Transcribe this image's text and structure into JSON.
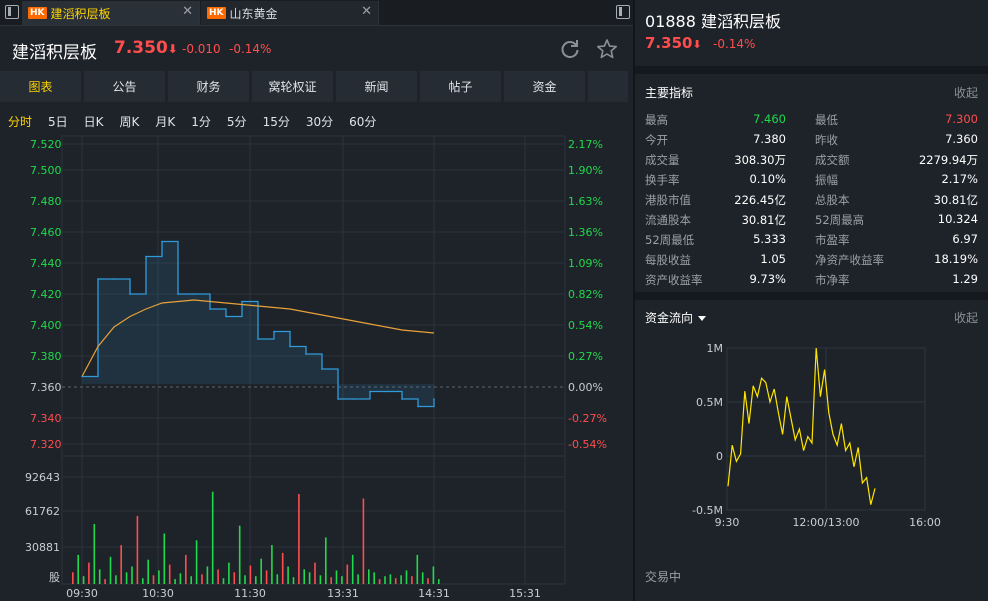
{
  "tabs": [
    {
      "badge": "HK",
      "label": "建滔积层板",
      "active": true
    },
    {
      "badge": "HK",
      "label": "山东黄金",
      "active": false
    }
  ],
  "stock": {
    "name": "建滔积层板",
    "price": "7.350",
    "price_arrow": "⬇",
    "change": "-0.010",
    "change_pct": "-0.14%"
  },
  "nav_tabs": [
    "图表",
    "公告",
    "财务",
    "窝轮权证",
    "新闻",
    "帖子",
    "资金"
  ],
  "periods": [
    "分时",
    "5日",
    "日K",
    "周K",
    "月K",
    "1分",
    "5分",
    "15分",
    "30分",
    "60分"
  ],
  "colors": {
    "up": "#21d94c",
    "down": "#ff4d4d",
    "accent": "#ffd400",
    "price_line": "#2e9cdc",
    "avg_line": "#e8a13a",
    "volume_up": "#21d94c",
    "volume_down": "#ff4d4d",
    "flow_line": "#ffe600"
  },
  "price_chart": {
    "y_labels": [
      "7.520",
      "7.500",
      "7.480",
      "7.460",
      "7.440",
      "7.420",
      "7.400",
      "7.380",
      "7.360",
      "7.340",
      "7.320"
    ],
    "pct_labels": [
      "2.17%",
      "1.90%",
      "1.63%",
      "1.36%",
      "1.09%",
      "0.82%",
      "0.54%",
      "0.27%",
      "0.00%",
      "-0.27%",
      "-0.54%"
    ],
    "prev_close": 7.36,
    "volume_labels": [
      "92643",
      "61762",
      "30881",
      "股"
    ],
    "time_labels": [
      "09:30",
      "10:30",
      "11:30",
      "13:31",
      "14:31",
      "15:31"
    ]
  },
  "chart_data": [
    {
      "type": "line",
      "title": "",
      "ylabel": "",
      "xlabel": "",
      "ylim": [
        7.32,
        7.52
      ],
      "x": [
        "09:30",
        "09:40",
        "09:50",
        "10:00",
        "10:10",
        "10:20",
        "10:30",
        "10:40",
        "10:50",
        "11:00",
        "11:10",
        "11:20",
        "11:30",
        "13:00",
        "13:10",
        "13:20",
        "13:30",
        "13:40",
        "13:50",
        "14:00",
        "14:10",
        "14:20",
        "14:30"
      ],
      "series": [
        {
          "values": [
            7.365,
            7.43,
            7.43,
            7.42,
            7.445,
            7.455,
            7.42,
            7.42,
            7.41,
            7.405,
            7.415,
            7.39,
            7.395,
            7.385,
            7.38,
            7.37,
            7.35,
            7.35,
            7.355,
            7.355,
            7.35,
            7.345,
            7.35
          ]
        },
        {
          "values": [
            7.365,
            7.385,
            7.398,
            7.405,
            7.41,
            7.414,
            7.415,
            7.416,
            7.415,
            7.414,
            7.413,
            7.412,
            7.411,
            7.41,
            7.408,
            7.406,
            7.404,
            7.402,
            7.4,
            7.398,
            7.396,
            7.395,
            7.394
          ]
        }
      ]
    },
    {
      "type": "bar",
      "title": "",
      "ylabel": "",
      "ylim": [
        0,
        123524
      ],
      "x_range": [
        "09:30",
        "14:31"
      ],
      "values": [
        12000,
        30000,
        8000,
        22000,
        61762,
        15000,
        5000,
        28000,
        9000,
        40000,
        12000,
        18000,
        70000,
        6000,
        25000,
        9000,
        14000,
        52000,
        20000,
        5000,
        11000,
        30000,
        8000,
        45000,
        10000,
        18000,
        95000,
        15000,
        6000,
        22000,
        12000,
        60000,
        9000,
        19000,
        8000,
        26000,
        14000,
        40000,
        10000,
        32000,
        18000,
        7000,
        92643,
        15000,
        12000,
        22000,
        9000,
        48000,
        7000,
        14000,
        8000,
        20000,
        30000,
        10000,
        88000,
        15000,
        12000,
        5000,
        8000,
        10000,
        6000,
        9000,
        14000,
        8000,
        30000,
        12000,
        6000,
        18000,
        5000
      ]
    },
    {
      "type": "line",
      "title": "",
      "ylabel": "",
      "xlabel": "",
      "x_ticks": [
        "9:30",
        "12:00/13:00",
        "16:00"
      ],
      "y_ticks": [
        "1M",
        "0.5M",
        "0",
        "-0.5M"
      ],
      "ylim": [
        -0.5,
        1.0
      ],
      "series": [
        {
          "values": [
            -0.28,
            0.1,
            -0.05,
            0.02,
            0.6,
            0.3,
            0.65,
            0.55,
            0.72,
            0.68,
            0.5,
            0.62,
            0.4,
            0.2,
            0.55,
            0.35,
            0.15,
            0.25,
            0.05,
            0.18,
            0.12,
            1.0,
            0.55,
            0.8,
            0.4,
            0.2,
            0.1,
            0.3,
            0.05,
            0.12,
            -0.1,
            0.08,
            -0.25,
            -0.2,
            -0.45,
            -0.3
          ]
        }
      ]
    }
  ],
  "right": {
    "code": "01888",
    "name": "建滔积层板",
    "price": "7.350",
    "price_arrow": "⬇",
    "change_pct": "-0.14%",
    "metrics_title": "主要指标",
    "collapse_label": "收起",
    "metrics": [
      {
        "l1": "最高",
        "v1": "7.460",
        "c1": "green",
        "l2": "最低",
        "v2": "7.300",
        "c2": "red"
      },
      {
        "l1": "今开",
        "v1": "7.380",
        "c1": "",
        "l2": "昨收",
        "v2": "7.360",
        "c2": ""
      },
      {
        "l1": "成交量",
        "v1": "308.30万",
        "c1": "",
        "l2": "成交额",
        "v2": "2279.94万",
        "c2": ""
      },
      {
        "l1": "换手率",
        "v1": "0.10%",
        "c1": "",
        "l2": "振幅",
        "v2": "2.17%",
        "c2": ""
      },
      {
        "l1": "港股市值",
        "v1": "226.45亿",
        "c1": "",
        "l2": "总股本",
        "v2": "30.81亿",
        "c2": ""
      },
      {
        "l1": "流通股本",
        "v1": "30.81亿",
        "c1": "",
        "l2": "52周最高",
        "v2": "10.324",
        "c2": ""
      },
      {
        "l1": "52周最低",
        "v1": "5.333",
        "c1": "",
        "l2": "市盈率",
        "v2": "6.97",
        "c2": ""
      },
      {
        "l1": "每股收益",
        "v1": "1.05",
        "c1": "",
        "l2": "净资产收益率",
        "v2": "18.19%",
        "c2": ""
      },
      {
        "l1": "资产收益率",
        "v1": "9.73%",
        "c1": "",
        "l2": "市净率",
        "v2": "1.29",
        "c2": ""
      }
    ],
    "flow_title": "资金流向",
    "flow_collapse": "收起",
    "status": "交易中"
  }
}
